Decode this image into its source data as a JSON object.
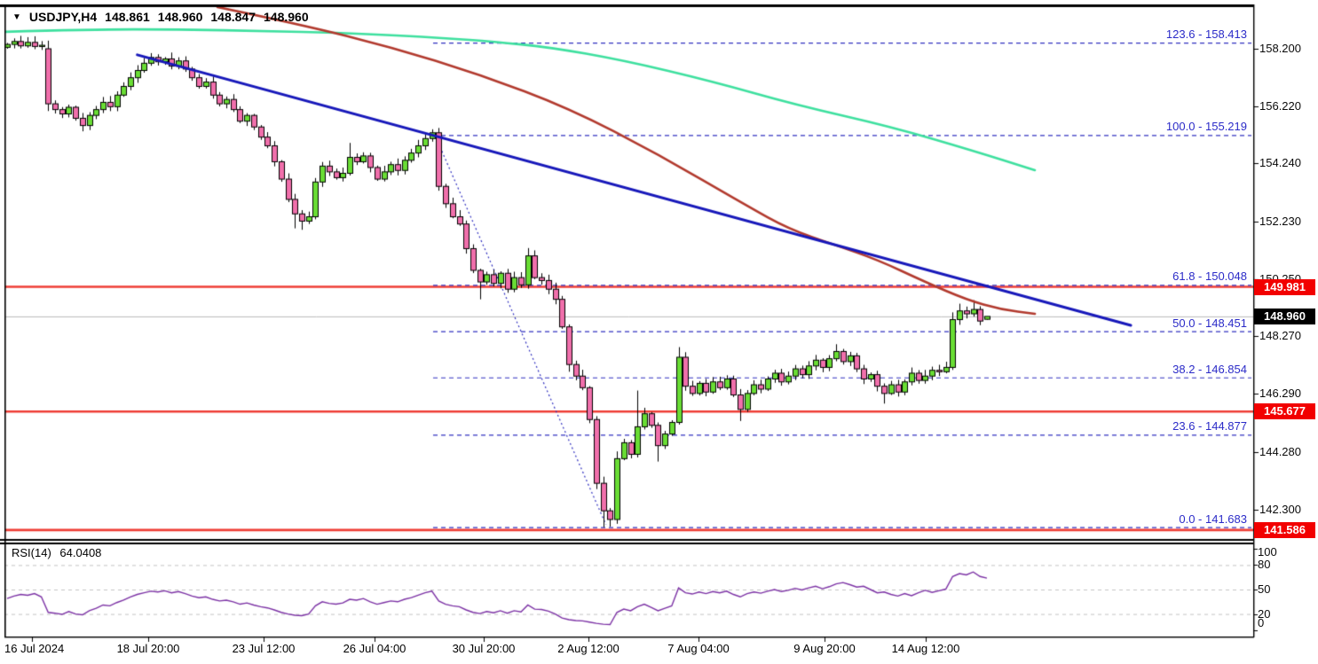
{
  "title": {
    "dropdown_icon": "▼",
    "symbol": "USDJPY,H4",
    "open": "148.861",
    "high": "148.960",
    "low": "148.847",
    "close": "148.960"
  },
  "rsi_panel": {
    "name": "RSI(14)",
    "value": "64.0408",
    "scale_labels": [
      {
        "text": "100",
        "v": 100
      },
      {
        "text": "80",
        "v": 80
      },
      {
        "text": "50",
        "v": 50
      },
      {
        "text": "20",
        "v": 20
      },
      {
        "text": "0",
        "v": 0
      }
    ],
    "grid_levels": [
      80,
      50,
      20
    ]
  },
  "price_axis": {
    "ticks": [
      {
        "text": "158.200",
        "price": 158.2
      },
      {
        "text": "156.220",
        "price": 156.22
      },
      {
        "text": "154.240",
        "price": 154.24
      },
      {
        "text": "152.230",
        "price": 152.23
      },
      {
        "text": "150.250",
        "price": 150.25
      },
      {
        "text": "148.270",
        "price": 148.27
      },
      {
        "text": "146.290",
        "price": 146.29
      },
      {
        "text": "144.280",
        "price": 144.28
      },
      {
        "text": "142.300",
        "price": 142.3
      }
    ]
  },
  "time_axis": {
    "labels": [
      {
        "text": "16 Jul 2024",
        "tick_x": 36,
        "label_x": 5,
        "align": "left"
      },
      {
        "text": "18 Jul 20:00",
        "tick_x": 167
      },
      {
        "text": "23 Jul 12:00",
        "tick_x": 297
      },
      {
        "text": "26 Jul 04:00",
        "tick_x": 422
      },
      {
        "text": "30 Jul 20:00",
        "tick_x": 545
      },
      {
        "text": "2 Aug 12:00",
        "tick_x": 663
      },
      {
        "text": "7 Aug 04:00",
        "tick_x": 787
      },
      {
        "text": "9 Aug 20:00",
        "tick_x": 929
      },
      {
        "text": "14 Aug 12:00",
        "tick_x": 1043
      }
    ]
  },
  "price_tags": [
    {
      "text": "149.981",
      "price": 149.981,
      "bg": "#F20000"
    },
    {
      "text": "148.960",
      "price": 148.96,
      "bg": "#000000"
    },
    {
      "text": "145.677",
      "price": 145.677,
      "bg": "#F20000"
    },
    {
      "text": "141.586",
      "price": 141.586,
      "bg": "#F20000"
    }
  ],
  "colors": {
    "bull": "#69DD34",
    "bear": "#F06FAB",
    "candle_border": "#000000",
    "ma_green": "#3EE09F",
    "ma_brown": "#B23A2E",
    "trendline_blue": "#1718BA",
    "fib_dash": "#3030C0",
    "fib_label": "#2B2BC8",
    "red_line": "#EF3E36",
    "current_line": "#BBBBBB",
    "rsi_line": "#7C32A5",
    "rsi_grid": "#C4C4C4",
    "frame": "#000000"
  },
  "chart_data": {
    "type": "candlestick",
    "symbol": "USDJPY",
    "timeframe": "H4",
    "last_ohlc": {
      "open": 148.861,
      "high": 148.96,
      "low": 148.847,
      "close": 148.96
    },
    "first_open": 158.25,
    "closes": [
      158.35,
      158.45,
      158.3,
      158.42,
      158.28,
      158.32,
      156.3,
      156.1,
      155.95,
      156.18,
      155.8,
      155.55,
      155.9,
      156.1,
      156.35,
      156.2,
      156.6,
      156.9,
      157.2,
      157.45,
      157.7,
      157.9,
      157.75,
      157.85,
      157.6,
      157.78,
      157.5,
      157.2,
      156.9,
      157.05,
      156.6,
      156.3,
      156.45,
      156.1,
      155.7,
      155.9,
      155.5,
      155.15,
      154.85,
      154.3,
      153.7,
      153.0,
      152.5,
      152.25,
      152.4,
      153.6,
      154.15,
      153.95,
      153.75,
      153.9,
      154.45,
      154.3,
      154.5,
      154.1,
      153.7,
      153.95,
      154.2,
      154.0,
      154.35,
      154.6,
      154.85,
      155.1,
      155.3,
      153.45,
      152.85,
      152.4,
      152.15,
      151.3,
      150.55,
      150.15,
      150.4,
      150.1,
      150.45,
      149.9,
      150.3,
      150.05,
      151.05,
      150.3,
      150.2,
      149.9,
      149.55,
      148.6,
      147.3,
      146.9,
      146.5,
      145.4,
      143.2,
      142.25,
      141.95,
      144.05,
      144.6,
      144.2,
      145.15,
      145.6,
      145.2,
      144.5,
      144.9,
      145.3,
      147.55,
      146.55,
      146.3,
      146.65,
      146.35,
      146.7,
      146.5,
      146.8,
      146.25,
      145.75,
      146.3,
      146.6,
      146.45,
      146.8,
      147.0,
      146.7,
      146.9,
      147.15,
      146.95,
      147.25,
      147.45,
      147.2,
      147.5,
      147.75,
      147.4,
      147.6,
      147.15,
      146.8,
      146.95,
      146.55,
      146.3,
      146.6,
      146.35,
      146.7,
      147.0,
      146.75,
      146.9,
      147.1,
      147.05,
      147.2,
      148.85,
      149.15,
      149.05,
      149.2,
      148.8,
      148.96
    ],
    "overrides": {
      "6": {
        "o": 158.2,
        "h": 158.48,
        "l": 156.05
      },
      "11": {
        "l": 155.35
      },
      "21": {
        "h": 158.05
      },
      "42": {
        "l": 152.0
      },
      "43": {
        "l": 151.95
      },
      "50": {
        "h": 154.95
      },
      "62": {
        "h": 155.42
      },
      "63": {
        "l": 153.3
      },
      "69": {
        "l": 149.55
      },
      "76": {
        "h": 151.32
      },
      "82": {
        "l": 147.05
      },
      "86": {
        "l": 143.0
      },
      "87": {
        "l": 141.683
      },
      "88": {
        "l": 141.7
      },
      "89": {
        "h": 144.3
      },
      "92": {
        "h": 146.4
      },
      "95": {
        "l": 143.95
      },
      "98": {
        "h": 147.9
      },
      "107": {
        "l": 145.35
      },
      "121": {
        "h": 148.0
      },
      "128": {
        "l": 145.95
      },
      "138": {
        "h": 149.1
      },
      "139": {
        "h": 149.4
      },
      "141": {
        "h": 149.52
      },
      "143": {
        "o": 148.861,
        "h": 148.96,
        "l": 148.847
      }
    },
    "rsi": {
      "period": 14,
      "current": 64.0408,
      "values": [
        39,
        42,
        44,
        43,
        45,
        41,
        22,
        21,
        19.5,
        23,
        20,
        19,
        24,
        27,
        31,
        30,
        34,
        37,
        41,
        44,
        46,
        48,
        47,
        48.5,
        46,
        47.5,
        45,
        42,
        40,
        41,
        38,
        36,
        37,
        35,
        32,
        33.5,
        31,
        29,
        27.5,
        25,
        22,
        20,
        18.5,
        18,
        20,
        30,
        35,
        33,
        32,
        33.5,
        38,
        37,
        39,
        35,
        32,
        34,
        36,
        35,
        38,
        40,
        43,
        46,
        48,
        36,
        32,
        30,
        29,
        25,
        22,
        20.5,
        23,
        21.5,
        24,
        21,
        24,
        22.5,
        31,
        26,
        25.5,
        23.5,
        20,
        15,
        13,
        12,
        11.5,
        10,
        8.5,
        7.5,
        7,
        22,
        26,
        24,
        29,
        32,
        28,
        24,
        27,
        30,
        52,
        46,
        44.5,
        47,
        45,
        47.5,
        46,
        48,
        44,
        41,
        45,
        47,
        45.5,
        48,
        50,
        47.5,
        49,
        51.5,
        49.5,
        52,
        54,
        51,
        53.5,
        57,
        58.5,
        56,
        53,
        54,
        50,
        46,
        47,
        44,
        42,
        45,
        42.5,
        46,
        49,
        46.5,
        48.5,
        50.5,
        66,
        69.5,
        68,
        71.5,
        66,
        64.04
      ]
    },
    "overlays": {
      "ma_green": [
        [
          -1,
          158.78
        ],
        [
          12,
          158.87
        ],
        [
          25,
          158.87
        ],
        [
          38,
          158.81
        ],
        [
          48,
          158.75
        ],
        [
          57,
          158.66
        ],
        [
          64,
          158.57
        ],
        [
          71,
          158.44
        ],
        [
          79,
          158.26
        ],
        [
          90,
          157.8
        ],
        [
          103,
          157.07
        ],
        [
          115,
          156.27
        ],
        [
          129,
          155.51
        ],
        [
          141,
          154.68
        ],
        [
          150,
          154.01
        ]
      ],
      "ma_brown": [
        [
          30.7,
          159.64
        ],
        [
          43,
          159.03
        ],
        [
          56,
          158.26
        ],
        [
          69,
          157.31
        ],
        [
          82,
          156.15
        ],
        [
          95,
          154.56
        ],
        [
          108,
          152.78
        ],
        [
          114,
          151.99
        ],
        [
          121,
          151.41
        ],
        [
          127,
          150.92
        ],
        [
          134,
          150.15
        ],
        [
          140,
          149.54
        ],
        [
          145,
          149.2
        ],
        [
          150,
          149.05
        ]
      ],
      "trendline_blue": [
        [
          19,
          157.99
        ],
        [
          164,
          148.65
        ]
      ],
      "fib_diagonal": [
        [
          62.4,
          155.23
        ],
        [
          87.4,
          141.77
        ]
      ]
    },
    "fibonacci_levels": [
      {
        "label": "123.6 - 158.413",
        "pct": 123.6,
        "price": 158.413
      },
      {
        "label": "100.0 - 155.219",
        "pct": 100.0,
        "price": 155.219
      },
      {
        "label": "61.8 - 150.048",
        "pct": 61.8,
        "price": 150.048
      },
      {
        "label": "50.0 - 148.451",
        "pct": 50.0,
        "price": 148.451
      },
      {
        "label": "38.2 - 146.854",
        "pct": 38.2,
        "price": 146.854
      },
      {
        "label": "23.6 - 144.877",
        "pct": 23.6,
        "price": 144.877
      },
      {
        "label": "0.0 - 141.683",
        "pct": 0.0,
        "price": 141.683
      }
    ],
    "horizontal_lines": [
      {
        "price": 149.981
      },
      {
        "price": 145.677
      },
      {
        "price": 141.586
      }
    ],
    "current_price": 148.96,
    "x_axis_labels": [
      "16 Jul 2024",
      "18 Jul 20:00",
      "23 Jul 12:00",
      "26 Jul 04:00",
      "30 Jul 20:00",
      "2 Aug 12:00",
      "7 Aug 04:00",
      "9 Aug 20:00",
      "14 Aug 12:00"
    ],
    "y_axis_ticks": [
      "158.200",
      "156.220",
      "154.240",
      "152.230",
      "150.250",
      "148.270",
      "146.290",
      "144.280",
      "142.300"
    ]
  }
}
